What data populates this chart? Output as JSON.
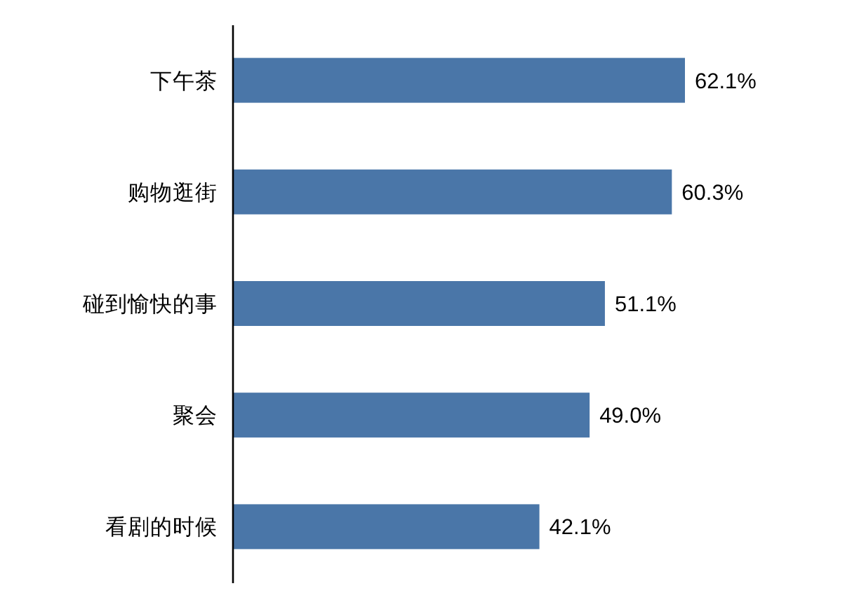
{
  "chart_data": {
    "type": "bar",
    "orientation": "horizontal",
    "categories": [
      "下午茶",
      "购物逛街",
      "碰到愉快的事",
      "聚会",
      "看剧的时候"
    ],
    "values": [
      62.1,
      60.3,
      51.1,
      49.0,
      42.1
    ],
    "value_labels": [
      "62.1%",
      "60.3%",
      "51.1%",
      "49.0%",
      "42.1%"
    ],
    "color": "#4a76a8"
  }
}
